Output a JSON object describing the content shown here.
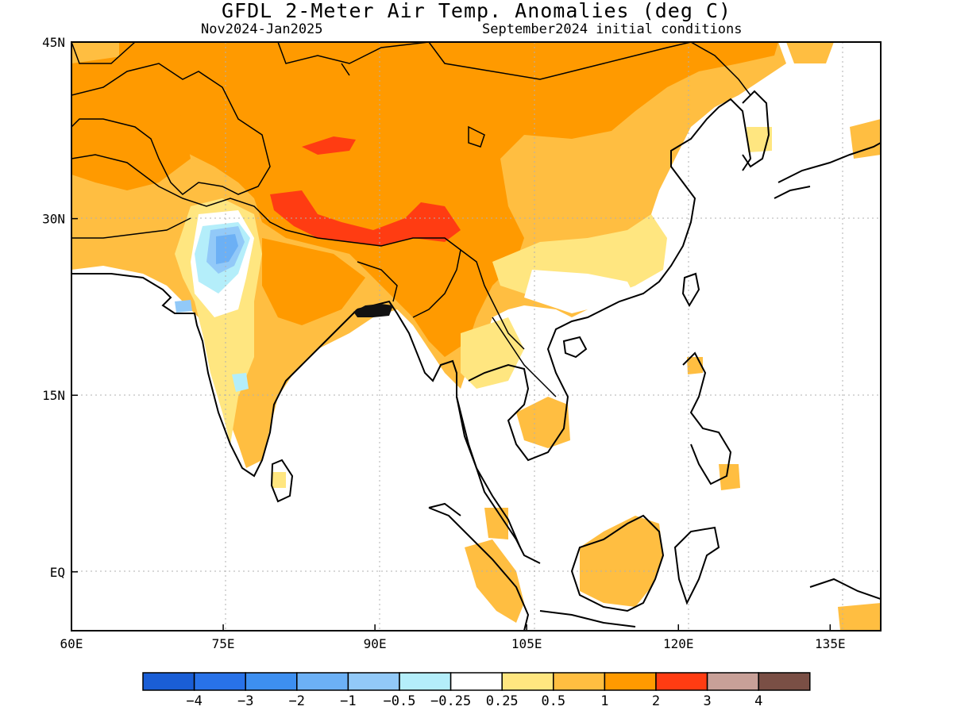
{
  "title": "GFDL 2-Meter Air Temp. Anomalies (deg C)",
  "subtitle_left": "Nov2024-Jan2025",
  "subtitle_right": "September2024 initial conditions",
  "map": {
    "lon_range": [
      60,
      140
    ],
    "lat_range": [
      -5,
      45
    ],
    "lon_ticks": [
      {
        "value": 60,
        "label": "60E"
      },
      {
        "value": 75,
        "label": "75E"
      },
      {
        "value": 90,
        "label": "90E"
      },
      {
        "value": 105,
        "label": "105E"
      },
      {
        "value": 120,
        "label": "120E"
      },
      {
        "value": 135,
        "label": "135E"
      }
    ],
    "lat_ticks": [
      {
        "value": 45,
        "label": "45N"
      },
      {
        "value": 30,
        "label": "30N"
      },
      {
        "value": 15,
        "label": "15N"
      },
      {
        "value": 0,
        "label": "EQ"
      }
    ],
    "grid": "dotted",
    "regions": [
      {
        "name": "Tibetan Plateau south rim",
        "class": "2-3"
      },
      {
        "name": "Tarim / northern Tibet",
        "class": "1-2"
      },
      {
        "name": "Central Asia / Pakistan / Afghanistan",
        "class": "1-2"
      },
      {
        "name": "Gangetic plain / Northeast India / Myanmar",
        "class": "1-2"
      },
      {
        "name": "Central India",
        "class": "0.5-1"
      },
      {
        "name": "Rajasthan / Gujarat",
        "class": "-1 to -0.25"
      },
      {
        "name": "Southern China",
        "class": "0.25-0.5"
      },
      {
        "name": "Indochina / Sumatra / Borneo / Sulawesi",
        "class": "0.5-1"
      }
    ]
  },
  "colorbar": {
    "colors": [
      "#1a5ed6",
      "#2872e8",
      "#3d8ff0",
      "#6cb0f5",
      "#92c9f8",
      "#b4eefa",
      "#ffffff",
      "#ffe680",
      "#ffbe41",
      "#ff9a00",
      "#ff3c12",
      "#c8a098",
      "#7a4f45"
    ],
    "labels": [
      "-4",
      "-3",
      "-2",
      "-1",
      "-0.5",
      "-0.25",
      "0.25",
      "0.5",
      "1",
      "2",
      "3",
      "4"
    ]
  }
}
